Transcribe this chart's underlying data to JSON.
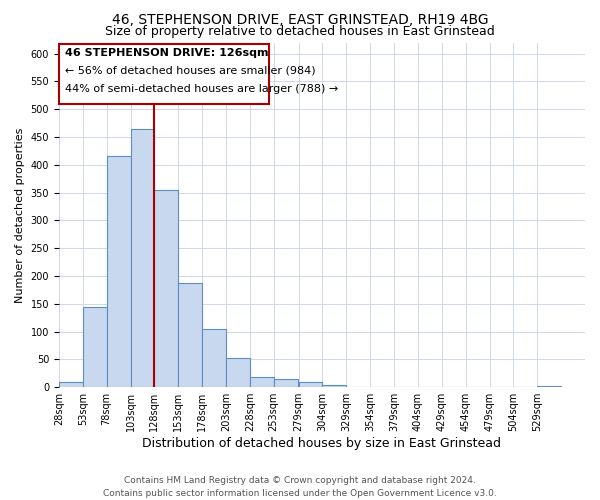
{
  "title": "46, STEPHENSON DRIVE, EAST GRINSTEAD, RH19 4BG",
  "subtitle": "Size of property relative to detached houses in East Grinstead",
  "xlabel": "Distribution of detached houses by size in East Grinstead",
  "ylabel": "Number of detached properties",
  "bar_color": "#c8d8ee",
  "bar_edge_color": "#5b8ec4",
  "background_color": "#ffffff",
  "grid_color": "#d0d8e8",
  "vline_x": 128,
  "vline_color": "#aa0000",
  "bin_edges": [
    28,
    53,
    78,
    103,
    128,
    153,
    178,
    203,
    228,
    253,
    279,
    304,
    329,
    354,
    379,
    404,
    429,
    454,
    479,
    504,
    529,
    554
  ],
  "bar_heights": [
    10,
    145,
    415,
    465,
    355,
    188,
    105,
    53,
    18,
    14,
    10,
    4,
    1,
    1,
    0,
    0,
    0,
    0,
    0,
    0,
    3
  ],
  "ylim": [
    0,
    620
  ],
  "yticks": [
    0,
    50,
    100,
    150,
    200,
    250,
    300,
    350,
    400,
    450,
    500,
    550,
    600
  ],
  "xtick_labels": [
    "28sqm",
    "53sqm",
    "78sqm",
    "103sqm",
    "128sqm",
    "153sqm",
    "178sqm",
    "203sqm",
    "228sqm",
    "253sqm",
    "279sqm",
    "304sqm",
    "329sqm",
    "354sqm",
    "379sqm",
    "404sqm",
    "429sqm",
    "454sqm",
    "479sqm",
    "504sqm",
    "529sqm"
  ],
  "annotation_line1": "46 STEPHENSON DRIVE: 126sqm",
  "annotation_line2": "← 56% of detached houses are smaller (984)",
  "annotation_line3": "44% of semi-detached houses are larger (788) →",
  "footer_text": "Contains HM Land Registry data © Crown copyright and database right 2024.\nContains public sector information licensed under the Open Government Licence v3.0.",
  "title_fontsize": 10,
  "subtitle_fontsize": 9,
  "xlabel_fontsize": 9,
  "ylabel_fontsize": 8,
  "tick_fontsize": 7,
  "annotation_fontsize": 8,
  "footer_fontsize": 6.5
}
